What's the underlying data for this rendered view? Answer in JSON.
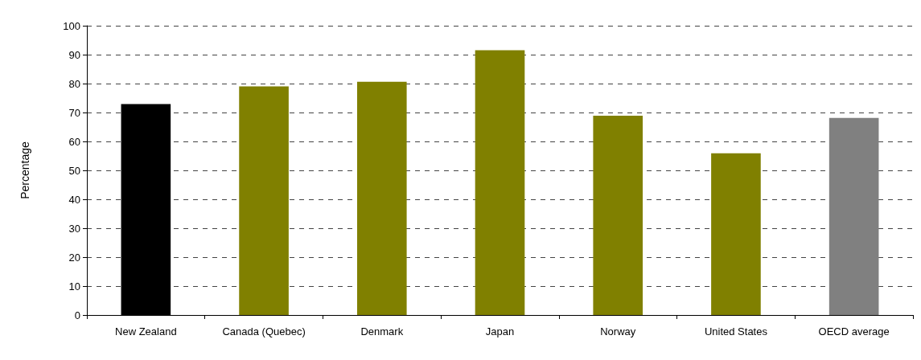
{
  "chart_data": {
    "type": "bar",
    "ylabel": "Percentage",
    "categories": [
      "New Zealand",
      "Canada (Quebec)",
      "Denmark",
      "Japan",
      "Norway",
      "United States",
      "OECD average"
    ],
    "values": [
      72.9,
      79,
      80.6,
      91.5,
      68.9,
      55.9,
      68.1
    ],
    "colors": [
      "#000000",
      "#808000",
      "#808000",
      "#808000",
      "#808000",
      "#808000",
      "#808080"
    ],
    "ylim": [
      0,
      100
    ],
    "yticks": [
      0,
      10,
      20,
      30,
      40,
      50,
      60,
      70,
      80,
      90,
      100
    ],
    "grid": "y"
  }
}
